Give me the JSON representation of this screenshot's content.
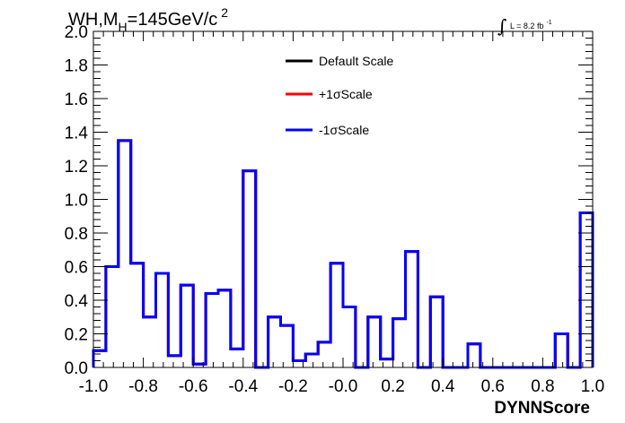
{
  "chart_data": {
    "type": "line",
    "title": {
      "prefix": "WH,M",
      "subscript": "H",
      "value": "=145GeV/c",
      "superscript": "2"
    },
    "luminosity": {
      "integral_symbol": "∫",
      "text": "L = 8.2 fb",
      "superscript": "-1"
    },
    "xlabel": "DYNNScore",
    "ylabel": "",
    "xlim": [
      -1.0,
      1.0
    ],
    "ylim": [
      0.0,
      2.0
    ],
    "x_ticks": [
      "-1.0",
      "-0.8",
      "-0.6",
      "-0.4",
      "-0.2",
      "-0.0",
      "0.2",
      "0.4",
      "0.6",
      "0.8",
      "1.0"
    ],
    "y_ticks": [
      "0.0",
      "0.2",
      "0.4",
      "0.6",
      "0.8",
      "1.0",
      "1.2",
      "1.4",
      "1.6",
      "1.8",
      "2.0"
    ],
    "bin_edges": [
      -1.0,
      -0.95,
      -0.9,
      -0.85,
      -0.8,
      -0.75,
      -0.7,
      -0.65,
      -0.6,
      -0.55,
      -0.5,
      -0.45,
      -0.4,
      -0.35,
      -0.3,
      -0.25,
      -0.2,
      -0.15,
      -0.1,
      -0.05,
      0.0,
      0.05,
      0.1,
      0.15,
      0.2,
      0.25,
      0.3,
      0.35,
      0.4,
      0.45,
      0.5,
      0.55,
      0.6,
      0.65,
      0.7,
      0.75,
      0.8,
      0.85,
      0.9,
      0.95,
      1.0
    ],
    "series": [
      {
        "name": "Default Scale",
        "color": "#000000",
        "values": [
          0.1,
          0.6,
          1.35,
          0.62,
          0.3,
          0.56,
          0.07,
          0.49,
          0.02,
          0.44,
          0.46,
          0.11,
          1.17,
          0.0,
          0.3,
          0.25,
          0.04,
          0.08,
          0.15,
          0.62,
          0.36,
          0.0,
          0.3,
          0.05,
          0.29,
          0.69,
          0.0,
          0.42,
          0.0,
          0.0,
          0.14,
          0.0,
          0.0,
          0.0,
          0.0,
          0.0,
          0.0,
          0.2,
          0.0,
          0.92
        ]
      },
      {
        "name": "+1σScale",
        "color": "#ff0000",
        "values": [
          0.1,
          0.6,
          1.35,
          0.62,
          0.3,
          0.56,
          0.07,
          0.49,
          0.02,
          0.44,
          0.46,
          0.11,
          1.17,
          0.0,
          0.3,
          0.25,
          0.04,
          0.08,
          0.15,
          0.62,
          0.36,
          0.0,
          0.3,
          0.05,
          0.29,
          0.69,
          0.0,
          0.42,
          0.0,
          0.0,
          0.14,
          0.0,
          0.0,
          0.0,
          0.0,
          0.0,
          0.0,
          0.2,
          0.0,
          0.92
        ]
      },
      {
        "name": "-1σScale",
        "color": "#0000ff",
        "values": [
          0.1,
          0.6,
          1.35,
          0.62,
          0.3,
          0.56,
          0.07,
          0.49,
          0.02,
          0.44,
          0.46,
          0.11,
          1.17,
          0.0,
          0.3,
          0.25,
          0.04,
          0.08,
          0.15,
          0.62,
          0.36,
          0.0,
          0.3,
          0.05,
          0.29,
          0.69,
          0.0,
          0.42,
          0.0,
          0.0,
          0.14,
          0.0,
          0.0,
          0.0,
          0.0,
          0.0,
          0.0,
          0.2,
          0.0,
          0.92
        ]
      }
    ],
    "legend_position": "top-center",
    "grid": false
  }
}
